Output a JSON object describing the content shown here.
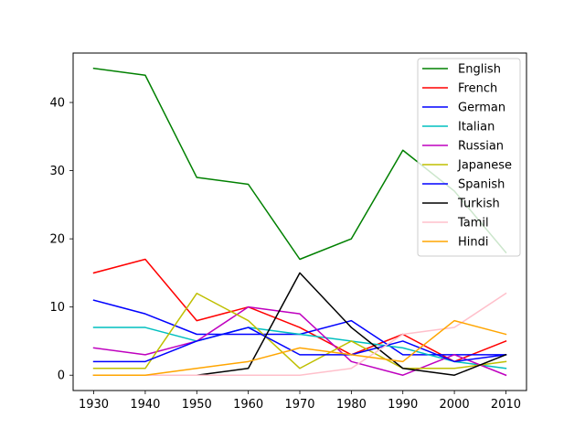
{
  "chart_data": {
    "type": "line",
    "x": [
      1930,
      1940,
      1950,
      1960,
      1970,
      1980,
      1990,
      2000,
      2010
    ],
    "xticks": [
      "1930",
      "1940",
      "1950",
      "1960",
      "1970",
      "1980",
      "1990",
      "2000",
      "2010"
    ],
    "yticks": [
      "0",
      "10",
      "20",
      "30",
      "40"
    ],
    "ylim": [
      -2.25,
      47.25
    ],
    "xlim": [
      1926,
      2014
    ],
    "legend_position": "top-right",
    "grid": false,
    "series": [
      {
        "name": "English",
        "color": "#008000",
        "values": [
          45,
          44,
          29,
          28,
          17,
          20,
          33,
          27,
          18
        ]
      },
      {
        "name": "French",
        "color": "#ff0000",
        "values": [
          15,
          17,
          8,
          10,
          7,
          3,
          6,
          2,
          5
        ]
      },
      {
        "name": "German",
        "color": "#0000ff",
        "values": [
          11,
          9,
          6,
          6,
          6,
          8,
          3,
          3,
          3
        ]
      },
      {
        "name": "Italian",
        "color": "#00bfbf",
        "values": [
          7,
          7,
          5,
          7,
          6,
          5,
          4,
          2,
          1
        ]
      },
      {
        "name": "Russian",
        "color": "#bf00bf",
        "values": [
          4,
          3,
          5,
          10,
          9,
          2,
          0,
          3,
          0
        ]
      },
      {
        "name": "Japanese",
        "color": "#bfbf00",
        "values": [
          1,
          1,
          12,
          8,
          1,
          5,
          1,
          1,
          2
        ]
      },
      {
        "name": "Spanish",
        "color": "#0000ff",
        "values": [
          2,
          2,
          5,
          7,
          3,
          3,
          5,
          2,
          3
        ]
      },
      {
        "name": "Turkish",
        "color": "#000000",
        "values": [
          0,
          0,
          0,
          1,
          15,
          7,
          1,
          0,
          3
        ]
      },
      {
        "name": "Tamil",
        "color": "#ffc0cb",
        "values": [
          0,
          0,
          0,
          0,
          0,
          1,
          6,
          7,
          12
        ]
      },
      {
        "name": "Hindi",
        "color": "#ffa500",
        "values": [
          0,
          0,
          1,
          2,
          4,
          3,
          2,
          8,
          6
        ]
      }
    ]
  }
}
